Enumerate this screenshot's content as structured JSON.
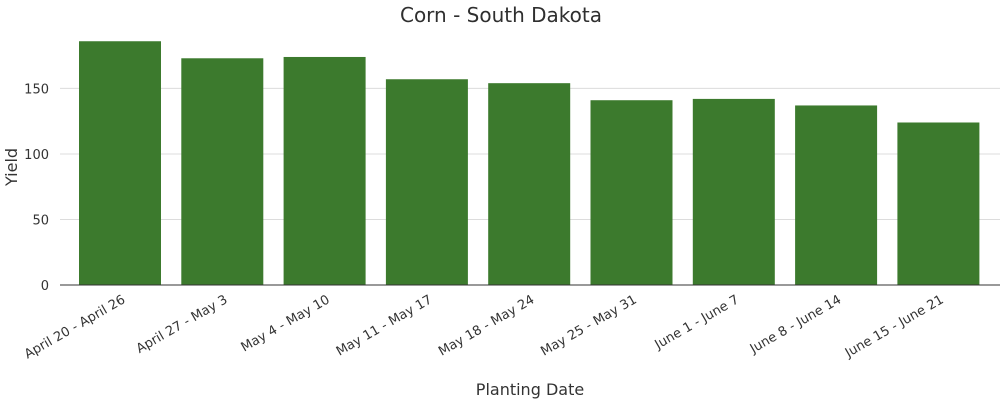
{
  "chart_data": {
    "type": "bar",
    "title": "Corn - South Dakota",
    "xlabel": "Planting Date",
    "ylabel": "Yield",
    "categories": [
      "April 20 - April 26",
      "April 27 - May 3",
      "May 4 - May 10",
      "May 11 - May 17",
      "May 18 - May 24",
      "May 25 - May 31",
      "June 1 - June 7",
      "June 8 - June 14",
      "June 15 - June 21"
    ],
    "values": [
      186,
      173,
      174,
      157,
      154,
      141,
      142,
      137,
      124
    ],
    "ylim": [
      0,
      190
    ],
    "yticks": [
      0,
      50,
      100,
      150
    ],
    "grid": true,
    "bar_color": "#3c7a2d"
  }
}
